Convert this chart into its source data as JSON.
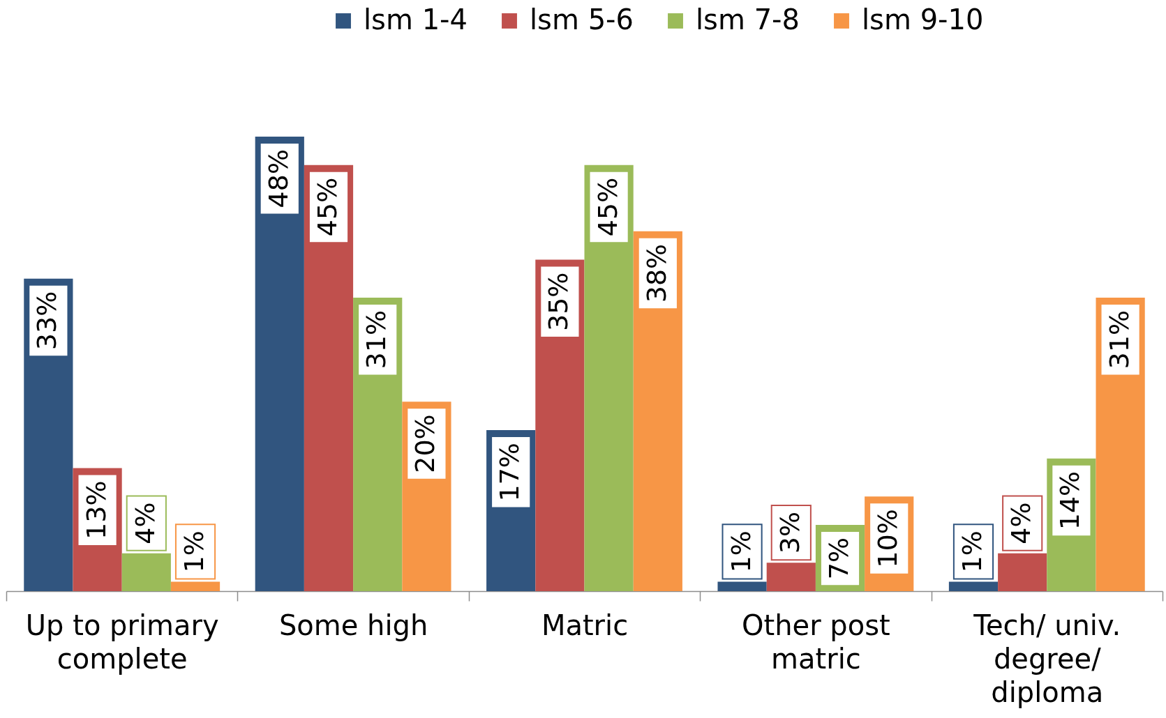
{
  "chart_data": {
    "type": "bar",
    "categories": [
      "Up to primary complete",
      "Some high",
      "Matric",
      "Other post matric",
      "Tech/ univ. degree/ diploma"
    ],
    "series": [
      {
        "name": "lsm 1-4",
        "color": "#31557f",
        "values": [
          33,
          48,
          17,
          1,
          1
        ],
        "value_labels": [
          "33%",
          "48%",
          "17%",
          "1%",
          "1%"
        ]
      },
      {
        "name": "lsm 5-6",
        "color": "#c0504d",
        "values": [
          13,
          45,
          35,
          3,
          4
        ],
        "value_labels": [
          "13%",
          "45%",
          "35%",
          "3%",
          "4%"
        ]
      },
      {
        "name": "lsm 7-8",
        "color": "#9bbb59",
        "values": [
          4,
          31,
          45,
          7,
          14
        ],
        "value_labels": [
          "4%",
          "31%",
          "45%",
          "7%",
          "14%"
        ]
      },
      {
        "name": "lsm 9-10",
        "color": "#f79646",
        "values": [
          1,
          20,
          38,
          10,
          31
        ],
        "value_labels": [
          "1%",
          "20%",
          "38%",
          "10%",
          "31%"
        ]
      }
    ],
    "legend": "top"
  }
}
